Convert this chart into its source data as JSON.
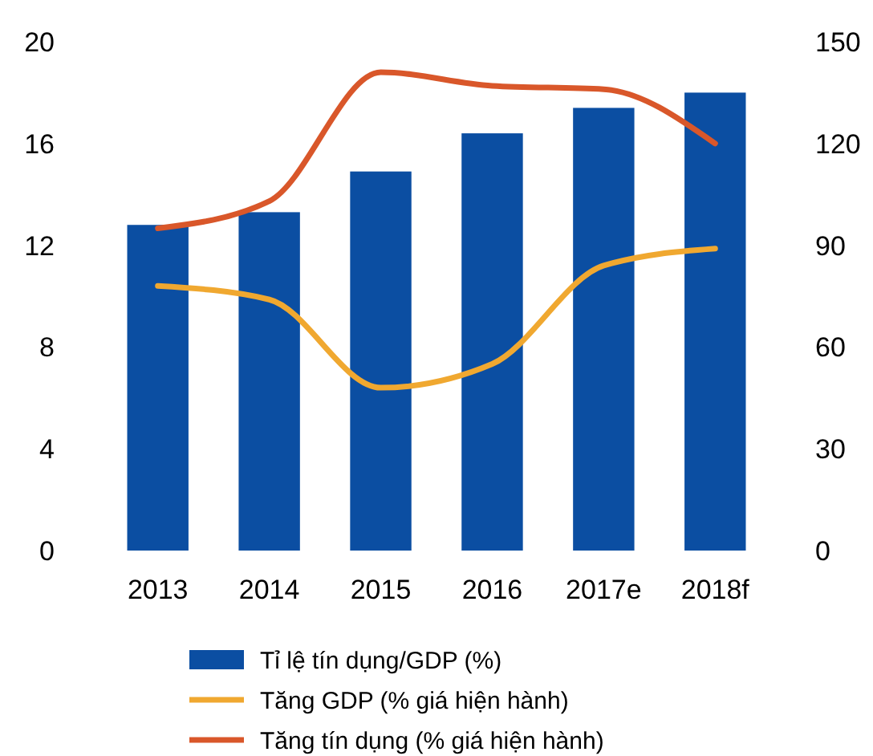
{
  "chart_data": {
    "type": "bar",
    "categories": [
      "2013",
      "2014",
      "2015",
      "2016",
      "2017e",
      "2018f"
    ],
    "series": [
      {
        "name": "Tỉ lệ tín dụng/GDP (%)",
        "color": "#0b4ea2",
        "values": [
          12.8,
          13.3,
          14.9,
          16.4,
          17.4,
          18.0
        ]
      },
      {
        "name": "Tăng GDP (% giá hiện hành)",
        "type": "line",
        "axis": "y2",
        "color": "#f0a830",
        "values": [
          78,
          74,
          48,
          55,
          84,
          89
        ]
      },
      {
        "name": "Tăng tín dụng (% giá hiện hành)",
        "type": "line",
        "axis": "y2",
        "color": "#d9572a",
        "values": [
          95,
          103,
          141,
          137,
          136,
          120
        ]
      }
    ],
    "ylim": [
      0,
      20
    ],
    "yticks": [
      0,
      4,
      8,
      12,
      16,
      20
    ],
    "y2lim": [
      0,
      150
    ],
    "y2ticks": [
      0,
      30,
      60,
      90,
      120,
      150
    ],
    "grid": false,
    "legend": "bottom",
    "marker": "none",
    "line_style": "solid"
  }
}
